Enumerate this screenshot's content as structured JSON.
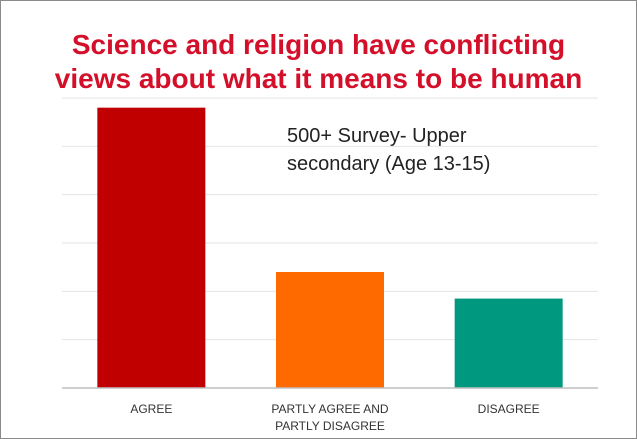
{
  "chart_data": {
    "type": "bar",
    "title_lines": [
      "Science and religion have conflicting",
      "views about what it means to be human"
    ],
    "annotation_lines": [
      "500+ Survey- Upper",
      "secondary (Age 13-15)"
    ],
    "categories": [
      [
        "AGREE"
      ],
      [
        "PARTLY AGREE AND",
        "PARTLY DISAGREE"
      ],
      [
        "DISAGREE"
      ]
    ],
    "values": [
      58,
      24,
      18.5
    ],
    "colors": [
      "#c00000",
      "#ff6a00",
      "#009980"
    ],
    "ylim": [
      0,
      60
    ],
    "grid": true,
    "gridline_step": 10,
    "xlabel": "",
    "ylabel": ""
  }
}
